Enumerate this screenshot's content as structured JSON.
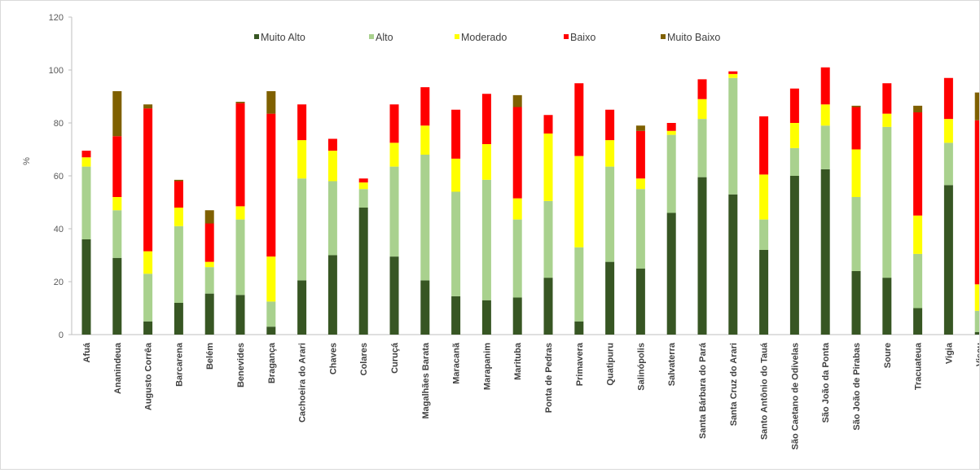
{
  "chart_data": {
    "type": "bar",
    "stacked": true,
    "ylabel": "%",
    "ylim": [
      0,
      120
    ],
    "yticks": [
      0,
      20,
      40,
      60,
      80,
      100,
      120
    ],
    "legend_position": "top",
    "grid": false,
    "categories": [
      "Afuá",
      "Ananindeua",
      "Augusto Corrêa",
      "Barcarena",
      "Belém",
      "Benevides",
      "Bragança",
      "Cachoeira do Arari",
      "Chaves",
      "Colares",
      "Curuçá",
      "Magalhães Barata",
      "Maracanã",
      "Marapanim",
      "Marituba",
      "Ponta de Pedras",
      "Primavera",
      "Quatipuru",
      "Salinópolis",
      "Salvaterra",
      "Santa Bárbara do Pará",
      "Santa Cruz do Arari",
      "Santo Antônio do Tauá",
      "São Caetano de Odivelas",
      "São João da Ponta",
      "São João de Pirabas",
      "Soure",
      "Tracuateua",
      "Vigia",
      "Viseu"
    ],
    "series": [
      {
        "name": "Muito Alto",
        "color": "#375623",
        "values": [
          36,
          29,
          5,
          12,
          15.5,
          15,
          3,
          20.5,
          30,
          48,
          29.5,
          20.5,
          14.5,
          13,
          14,
          21.5,
          5,
          27.5,
          25,
          46,
          59.5,
          53,
          32,
          60,
          62.5,
          24,
          21.5,
          10,
          56.5,
          1
        ]
      },
      {
        "name": "Alto",
        "color": "#a9d18e",
        "values": [
          27.5,
          18,
          18,
          29,
          10,
          28.5,
          9.5,
          38.5,
          28,
          7,
          34,
          47.5,
          39.5,
          45.5,
          29.5,
          29,
          28,
          36,
          30,
          29.5,
          22,
          44,
          11.5,
          10.5,
          16.5,
          28,
          57,
          20.5,
          16,
          8
        ]
      },
      {
        "name": "Moderado",
        "color": "#ffff00",
        "values": [
          3.5,
          5,
          8.5,
          7,
          2,
          5,
          17,
          14.5,
          11.5,
          2.5,
          9,
          11,
          12.5,
          13.5,
          8,
          25.5,
          34.5,
          10,
          4,
          1.5,
          7.5,
          1.5,
          17,
          9.5,
          8,
          18,
          5,
          14.5,
          9,
          10
        ]
      },
      {
        "name": "Baixo",
        "color": "#ff0000",
        "values": [
          2.5,
          23,
          54,
          10,
          14.5,
          39,
          54,
          13.5,
          4.5,
          1.5,
          14.5,
          14.5,
          18.5,
          19,
          34.5,
          7,
          27.5,
          11.5,
          18,
          3,
          7.5,
          1,
          22,
          13,
          14,
          16,
          11.5,
          39,
          15.5,
          62
        ]
      },
      {
        "name": "Muito Baixo",
        "color": "#7f6000",
        "values": [
          0,
          17,
          1.5,
          0.5,
          5,
          0.5,
          8.5,
          0,
          0,
          0,
          0,
          0,
          0,
          0,
          4.5,
          0,
          0,
          0,
          2,
          0,
          0,
          0,
          0,
          0,
          0,
          0.5,
          0,
          2.5,
          0,
          10.5
        ]
      }
    ]
  }
}
